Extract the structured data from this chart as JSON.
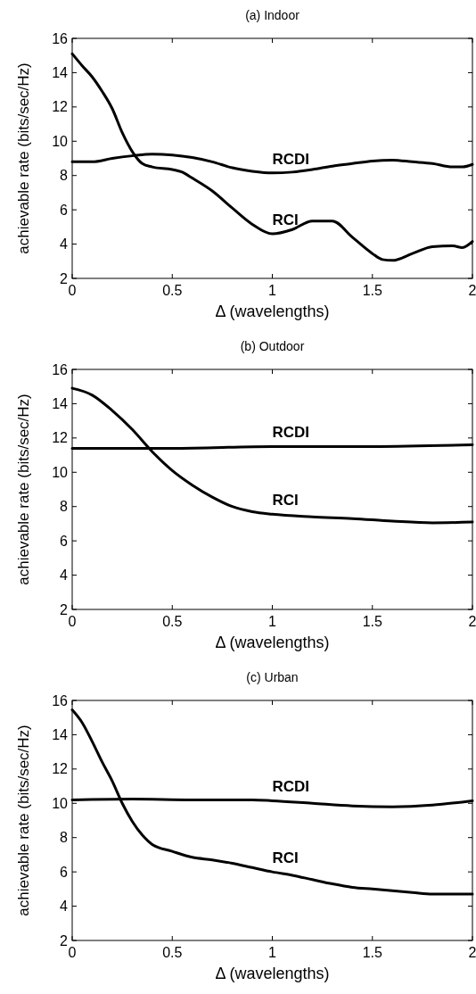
{
  "chart_data": [
    {
      "type": "line",
      "title": "(a) Indoor",
      "xlabel": "Δ (wavelengths)",
      "ylabel": "achievable rate (bits/sec/Hz)",
      "xlim": [
        0,
        2
      ],
      "ylim": [
        2,
        16
      ],
      "xticks": [
        0,
        0.5,
        1,
        1.5,
        2
      ],
      "yticks": [
        2,
        4,
        6,
        8,
        10,
        12,
        14,
        16
      ],
      "grid": false,
      "line_style": "solid",
      "marker": "none",
      "series": [
        {
          "name": "RCDI",
          "color": "#000000",
          "x": [
            0,
            0.1,
            0.2,
            0.3,
            0.4,
            0.5,
            0.6,
            0.7,
            0.8,
            0.9,
            1.0,
            1.1,
            1.2,
            1.3,
            1.4,
            1.5,
            1.6,
            1.7,
            1.8,
            1.9,
            1.95,
            2.0
          ],
          "values": [
            8.8,
            8.8,
            9.0,
            9.15,
            9.25,
            9.2,
            9.05,
            8.8,
            8.45,
            8.25,
            8.15,
            8.2,
            8.35,
            8.55,
            8.7,
            8.85,
            8.9,
            8.8,
            8.7,
            8.5,
            8.5,
            8.65
          ]
        },
        {
          "name": "RCI",
          "color": "#000000",
          "x": [
            0,
            0.05,
            0.1,
            0.15,
            0.2,
            0.25,
            0.3,
            0.35,
            0.4,
            0.5,
            0.55,
            0.6,
            0.7,
            0.8,
            0.9,
            1.0,
            1.1,
            1.2,
            1.3,
            1.4,
            1.5,
            1.55,
            1.6,
            1.7,
            1.8,
            1.9,
            1.95,
            2.0
          ],
          "values": [
            15.1,
            14.4,
            13.75,
            12.9,
            11.9,
            10.5,
            9.4,
            8.7,
            8.5,
            8.35,
            8.2,
            7.85,
            7.1,
            6.1,
            5.15,
            4.6,
            4.85,
            5.35,
            5.35,
            4.4,
            3.45,
            3.1,
            3.05,
            3.45,
            3.85,
            3.9,
            3.8,
            4.15
          ]
        }
      ]
    },
    {
      "type": "line",
      "title": "(b) Outdoor",
      "xlabel": "Δ (wavelengths)",
      "ylabel": "achievable rate (bits/sec/Hz)",
      "xlim": [
        0,
        2
      ],
      "ylim": [
        2,
        16
      ],
      "xticks": [
        0,
        0.5,
        1,
        1.5,
        2
      ],
      "yticks": [
        2,
        4,
        6,
        8,
        10,
        12,
        14,
        16
      ],
      "grid": false,
      "line_style": "solid",
      "marker": "none",
      "series": [
        {
          "name": "RCDI",
          "color": "#000000",
          "x": [
            0,
            0.5,
            1.0,
            1.5,
            2.0
          ],
          "values": [
            11.4,
            11.4,
            11.5,
            11.5,
            11.6
          ]
        },
        {
          "name": "RCI",
          "color": "#000000",
          "x": [
            0,
            0.1,
            0.2,
            0.3,
            0.4,
            0.5,
            0.6,
            0.7,
            0.8,
            0.9,
            1.0,
            1.2,
            1.4,
            1.6,
            1.8,
            2.0
          ],
          "values": [
            14.9,
            14.5,
            13.6,
            12.5,
            11.2,
            10.1,
            9.25,
            8.55,
            8.0,
            7.7,
            7.55,
            7.4,
            7.3,
            7.15,
            7.05,
            7.1
          ]
        }
      ]
    },
    {
      "type": "line",
      "title": "(c) Urban",
      "xlabel": "Δ (wavelengths)",
      "ylabel": "achievable rate (bits/sec/Hz)",
      "xlim": [
        0,
        2
      ],
      "ylim": [
        2,
        16
      ],
      "xticks": [
        0,
        0.5,
        1,
        1.5,
        2
      ],
      "yticks": [
        2,
        4,
        6,
        8,
        10,
        12,
        14,
        16
      ],
      "grid": false,
      "line_style": "solid",
      "marker": "none",
      "series": [
        {
          "name": "RCDI",
          "color": "#000000",
          "x": [
            0,
            0.3,
            0.6,
            0.9,
            1.0,
            1.2,
            1.4,
            1.6,
            1.8,
            2.0
          ],
          "values": [
            10.2,
            10.25,
            10.2,
            10.2,
            10.15,
            10.0,
            9.85,
            9.8,
            9.9,
            10.15
          ]
        },
        {
          "name": "RCI",
          "color": "#000000",
          "x": [
            0,
            0.05,
            0.1,
            0.15,
            0.2,
            0.25,
            0.3,
            0.35,
            0.4,
            0.5,
            0.6,
            0.7,
            0.8,
            0.9,
            1.0,
            1.1,
            1.2,
            1.3,
            1.4,
            1.5,
            1.6,
            1.7,
            1.8,
            1.9,
            2.0
          ],
          "values": [
            15.45,
            14.7,
            13.6,
            12.4,
            11.3,
            10.0,
            8.95,
            8.15,
            7.6,
            7.2,
            6.85,
            6.7,
            6.5,
            6.25,
            6.0,
            5.8,
            5.55,
            5.3,
            5.1,
            5.0,
            4.9,
            4.8,
            4.7,
            4.7,
            4.7
          ]
        }
      ]
    }
  ]
}
